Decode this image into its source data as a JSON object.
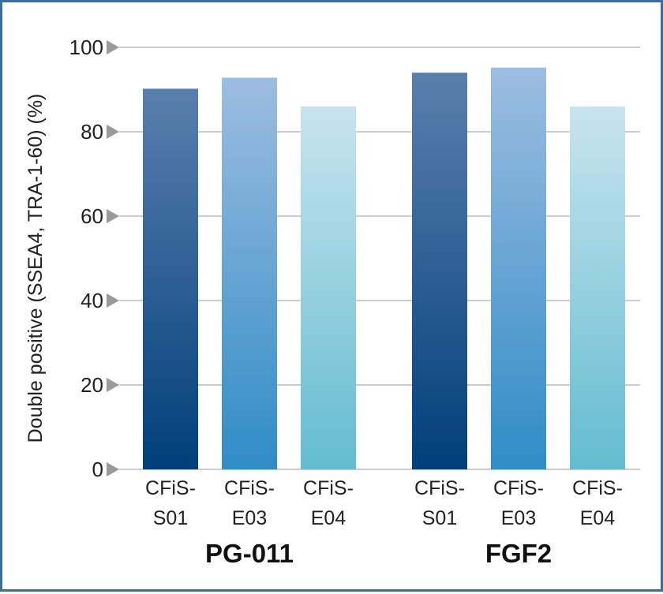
{
  "chart_data": {
    "type": "bar",
    "ylabel": "Double positive (SSEA4, TRA-1-60) (%)",
    "ylim": [
      0,
      100
    ],
    "yticks": [
      "0",
      "20",
      "40",
      "60",
      "80",
      "100"
    ],
    "grid": true,
    "groups": [
      {
        "label": "PG-011",
        "bars": [
          {
            "category": [
              "CFiS-",
              "S01"
            ],
            "value": 90.2
          },
          {
            "category": [
              "CFiS-",
              "E03"
            ],
            "value": 92.8
          },
          {
            "category": [
              "CFiS-",
              "E04"
            ],
            "value": 86.0
          }
        ]
      },
      {
        "label": "FGF2",
        "bars": [
          {
            "category": [
              "CFiS-",
              "S01"
            ],
            "value": 94.0
          },
          {
            "category": [
              "CFiS-",
              "E03"
            ],
            "value": 95.2
          },
          {
            "category": [
              "CFiS-",
              "E04"
            ],
            "value": 86.0
          }
        ]
      }
    ],
    "colors": {
      "S01": [
        "#5a7fad",
        "#003f7a"
      ],
      "E03": [
        "#9dbde0",
        "#2f8cc6"
      ],
      "E04": [
        "#c8e4ee",
        "#63bcd0"
      ],
      "grid": "#bbbbbb",
      "tick_marker": "#9a9a9a"
    }
  }
}
